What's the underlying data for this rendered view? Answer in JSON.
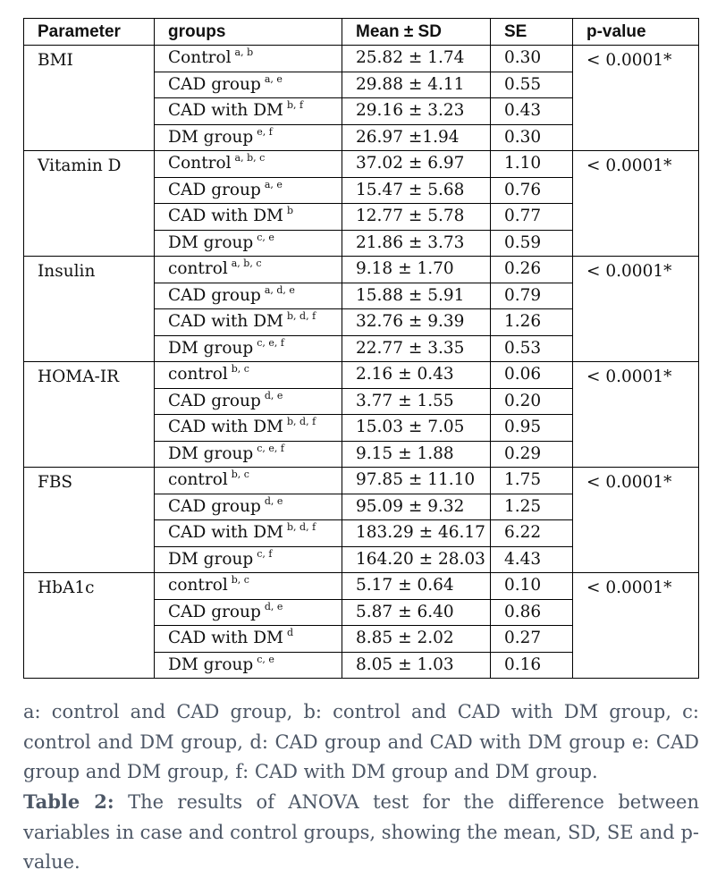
{
  "headers": [
    "Parameter",
    "groups",
    "Mean ± SD",
    "SE",
    "p-value"
  ],
  "rows": [
    {
      "parameter": "BMI",
      "pvalue": "< 0.0001*",
      "groups": [
        {
          "name": "Control",
          "sup": "a, b",
          "mean_sd": "25.82 ± 1.74",
          "se": "0.30"
        },
        {
          "name": "CAD group",
          "sup": "a, e",
          "mean_sd": "29.88 ± 4.11",
          "se": "0.55"
        },
        {
          "name": "CAD with DM",
          "sup": "b, f",
          "mean_sd": "29.16 ± 3.23",
          "se": "0.43"
        },
        {
          "name": "DM group",
          "sup": "e, f",
          "mean_sd": "26.97 ±1.94",
          "se": "0.30"
        }
      ]
    },
    {
      "parameter": "Vitamin D",
      "pvalue": "< 0.0001*",
      "groups": [
        {
          "name": "Control",
          "sup": "a, b, c",
          "mean_sd": "37.02 ± 6.97",
          "se": "1.10"
        },
        {
          "name": "CAD group",
          "sup": "a, e",
          "mean_sd": "15.47 ± 5.68",
          "se": "0.76"
        },
        {
          "name": "CAD with DM",
          "sup": "b",
          "mean_sd": "12.77 ± 5.78",
          "se": "0.77"
        },
        {
          "name": "DM group",
          "sup": "c, e",
          "mean_sd": "21.86 ± 3.73",
          "se": "0.59"
        }
      ]
    },
    {
      "parameter": "Insulin",
      "pvalue": "< 0.0001*",
      "groups": [
        {
          "name": "control",
          "sup": "a, b, c",
          "mean_sd": "9.18 ± 1.70",
          "se": "0.26"
        },
        {
          "name": "CAD group",
          "sup": "a, d, e",
          "mean_sd": "15.88 ± 5.91",
          "se": "0.79"
        },
        {
          "name": "CAD with DM",
          "sup": "b, d, f",
          "mean_sd": "32.76 ± 9.39",
          "se": "1.26"
        },
        {
          "name": "DM group",
          "sup": "c, e, f",
          "mean_sd": "22.77 ± 3.35",
          "se": "0.53"
        }
      ]
    },
    {
      "parameter": "HOMA-IR",
      "pvalue": "< 0.0001*",
      "groups": [
        {
          "name": "control",
          "sup": "b, c",
          "mean_sd": "2.16 ± 0.43",
          "se": "0.06"
        },
        {
          "name": "CAD group",
          "sup": "d, e",
          "mean_sd": "3.77 ± 1.55",
          "se": "0.20"
        },
        {
          "name": "CAD with DM",
          "sup": "b, d, f",
          "mean_sd": "15.03 ± 7.05",
          "se": "0.95"
        },
        {
          "name": "DM group",
          "sup": "c, e, f",
          "mean_sd": "9.15 ± 1.88",
          "se": "0.29"
        }
      ]
    },
    {
      "parameter": "FBS",
      "pvalue": "< 0.0001*",
      "groups": [
        {
          "name": "control",
          "sup": "b, c",
          "mean_sd": "97.85 ± 11.10",
          "se": "1.75"
        },
        {
          "name": "CAD group",
          "sup": "d, e",
          "mean_sd": "95.09 ± 9.32",
          "se": "1.25"
        },
        {
          "name": "CAD with DM",
          "sup": "b, d, f",
          "mean_sd": "183.29 ± 46.17",
          "se": "6.22"
        },
        {
          "name": "DM group",
          "sup": "c, f",
          "mean_sd": "164.20 ± 28.03",
          "se": "4.43"
        }
      ]
    },
    {
      "parameter": "HbA1c",
      "pvalue": "< 0.0001*",
      "groups": [
        {
          "name": "control",
          "sup": "b, c",
          "mean_sd": "5.17 ± 0.64",
          "se": "0.10"
        },
        {
          "name": "CAD group",
          "sup": "d, e",
          "mean_sd": "5.87 ± 6.40",
          "se": "0.86"
        },
        {
          "name": "CAD with DM",
          "sup": "d",
          "mean_sd": "8.85 ± 2.02",
          "se": "0.27"
        },
        {
          "name": "DM group",
          "sup": "c, e",
          "mean_sd": "8.05 ± 1.03",
          "se": "0.16"
        }
      ]
    }
  ],
  "footnote": "a: control and CAD group, b: control and CAD with DM group, c: control and DM group, d: CAD group and CAD with DM group e: CAD group and DM group, f: CAD with DM group and DM group.",
  "caption": {
    "label": "Table 2:",
    "text": " The results of ANOVA test for the difference between variables in case and control groups, showing the mean, SD, SE and p-value."
  },
  "colors": {
    "caption_text": "#4d5766",
    "table_text": "#111111",
    "border": "#000000"
  }
}
